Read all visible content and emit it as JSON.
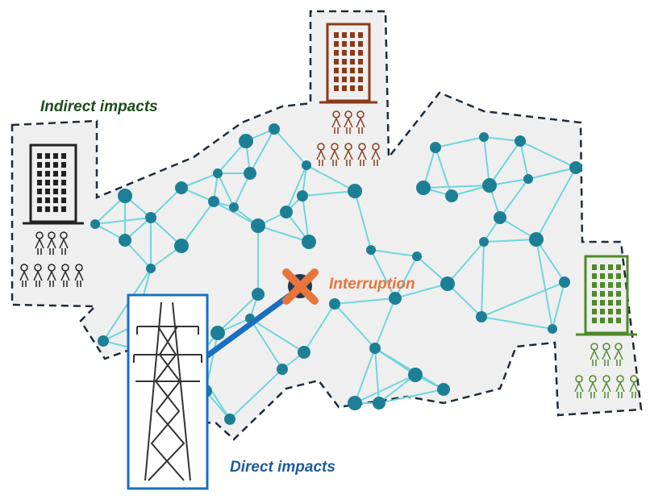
{
  "labels": {
    "indirect": "Indirect impacts",
    "interruption": "Interruption",
    "direct": "Direct impacts"
  }
}
